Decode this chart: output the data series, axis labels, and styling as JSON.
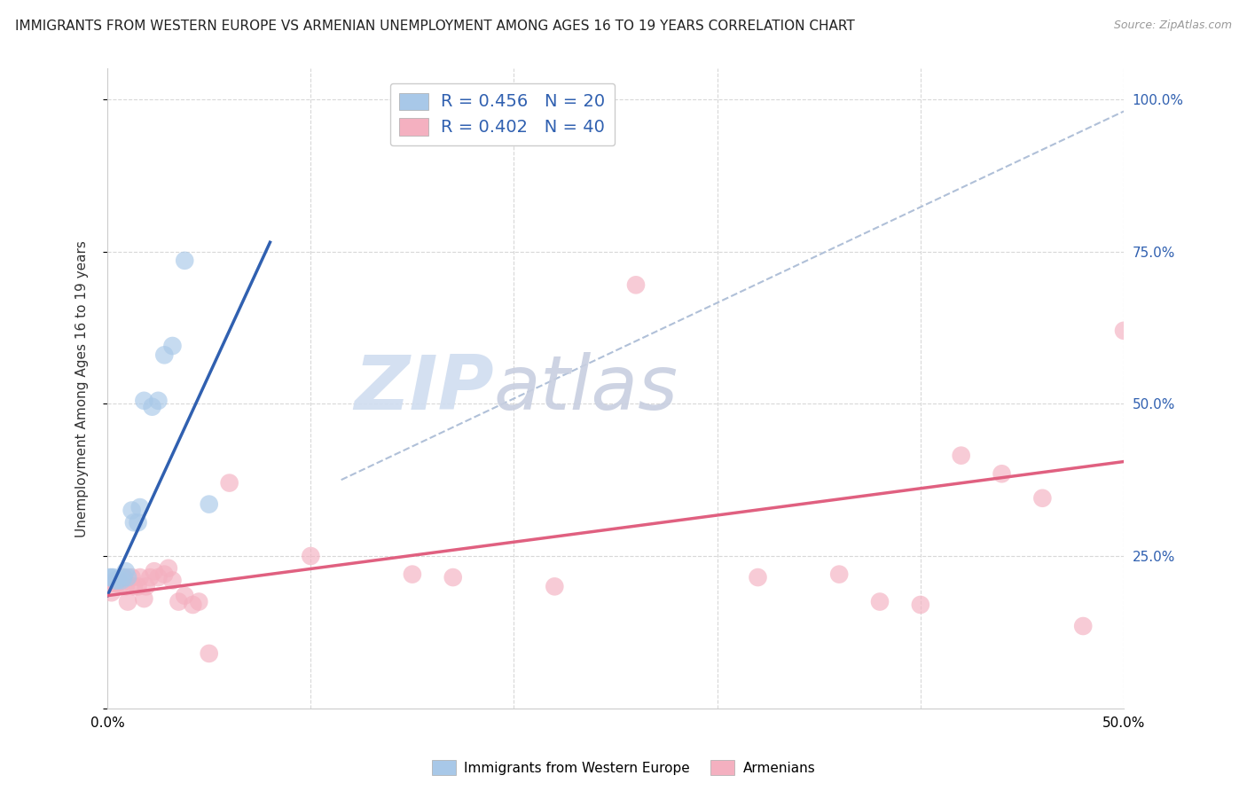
{
  "title": "IMMIGRANTS FROM WESTERN EUROPE VS ARMENIAN UNEMPLOYMENT AMONG AGES 16 TO 19 YEARS CORRELATION CHART",
  "source": "Source: ZipAtlas.com",
  "ylabel": "Unemployment Among Ages 16 to 19 years",
  "xmin": 0.0,
  "xmax": 0.5,
  "ymin": 0.0,
  "ymax": 1.05,
  "blue_R": 0.456,
  "blue_N": 20,
  "pink_R": 0.402,
  "pink_N": 40,
  "legend_label_blue": "Immigrants from Western Europe",
  "legend_label_pink": "Armenians",
  "watermark_zip": "ZIP",
  "watermark_atlas": "atlas",
  "blue_scatter_x": [
    0.001,
    0.002,
    0.003,
    0.004,
    0.005,
    0.007,
    0.008,
    0.009,
    0.01,
    0.012,
    0.013,
    0.015,
    0.016,
    0.018,
    0.022,
    0.025,
    0.028,
    0.032,
    0.038,
    0.05
  ],
  "blue_scatter_y": [
    0.215,
    0.215,
    0.215,
    0.21,
    0.21,
    0.21,
    0.215,
    0.225,
    0.215,
    0.325,
    0.305,
    0.305,
    0.33,
    0.505,
    0.495,
    0.505,
    0.58,
    0.595,
    0.735,
    0.335
  ],
  "pink_scatter_x": [
    0.001,
    0.002,
    0.004,
    0.005,
    0.007,
    0.008,
    0.009,
    0.01,
    0.012,
    0.013,
    0.015,
    0.016,
    0.018,
    0.019,
    0.021,
    0.023,
    0.025,
    0.028,
    0.03,
    0.032,
    0.035,
    0.038,
    0.042,
    0.045,
    0.05,
    0.06,
    0.1,
    0.15,
    0.17,
    0.22,
    0.26,
    0.32,
    0.36,
    0.38,
    0.4,
    0.42,
    0.44,
    0.46,
    0.48,
    0.5
  ],
  "pink_scatter_y": [
    0.205,
    0.19,
    0.205,
    0.205,
    0.205,
    0.215,
    0.2,
    0.175,
    0.215,
    0.2,
    0.2,
    0.215,
    0.18,
    0.2,
    0.215,
    0.225,
    0.215,
    0.22,
    0.23,
    0.21,
    0.175,
    0.185,
    0.17,
    0.175,
    0.09,
    0.37,
    0.25,
    0.22,
    0.215,
    0.2,
    0.695,
    0.215,
    0.22,
    0.175,
    0.17,
    0.415,
    0.385,
    0.345,
    0.135,
    0.62
  ],
  "blue_line_x": [
    0.0,
    0.08
  ],
  "blue_line_y": [
    0.185,
    0.765
  ],
  "pink_line_x": [
    0.0,
    0.5
  ],
  "pink_line_y": [
    0.185,
    0.405
  ],
  "dashed_line_x": [
    0.115,
    0.5
  ],
  "dashed_line_y": [
    0.375,
    0.98
  ],
  "blue_color": "#a8c8e8",
  "pink_color": "#f4b0c0",
  "blue_line_color": "#3060b0",
  "pink_line_color": "#e06080",
  "dashed_color": "#b0c0d8",
  "background_color": "#ffffff",
  "title_fontsize": 11,
  "source_fontsize": 9,
  "axis_label_color": "#3060b0"
}
